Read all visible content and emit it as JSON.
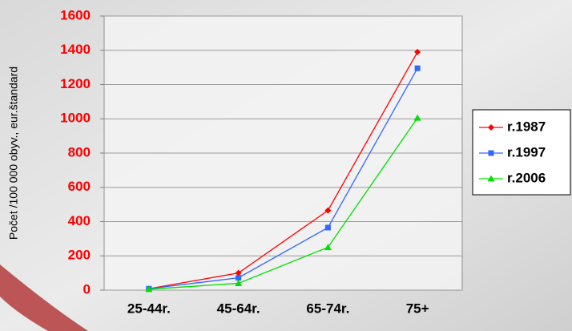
{
  "chart_data": {
    "type": "line",
    "y_label": "Počet /100 000 obyv., eur.štandard",
    "categories": [
      "25-44r.",
      "45-64r.",
      "65-74r.",
      "75+"
    ],
    "series": [
      {
        "name": "r.1987",
        "color": "#ff0000",
        "marker": "diamond",
        "values": [
          8,
          100,
          465,
          1390
        ]
      },
      {
        "name": "r.1997",
        "color": "#3366ff",
        "marker": "square",
        "values": [
          8,
          72,
          365,
          1295
        ]
      },
      {
        "name": "r.2006",
        "color": "#00e000",
        "marker": "triangle",
        "values": [
          5,
          40,
          250,
          1005
        ]
      }
    ],
    "ylim": [
      0,
      1600
    ],
    "yticks": [
      0,
      200,
      400,
      600,
      800,
      1000,
      1200,
      1400,
      1600
    ],
    "grid": true
  }
}
